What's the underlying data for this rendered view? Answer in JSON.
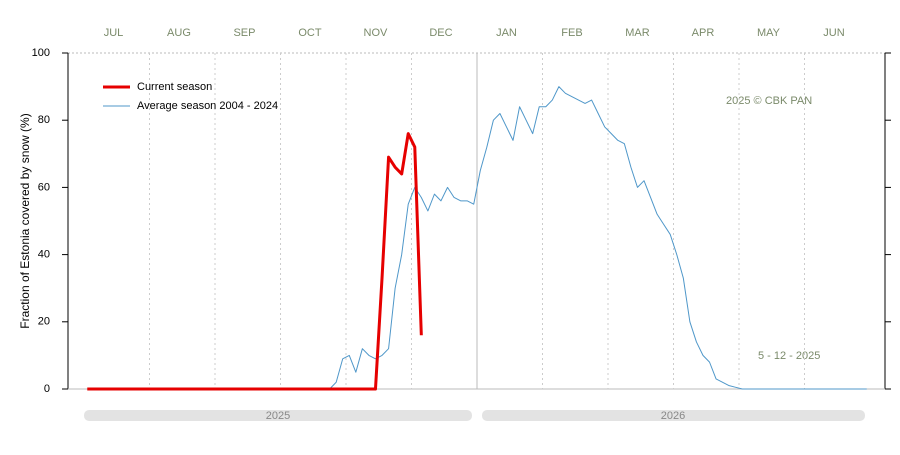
{
  "chart_data": {
    "type": "line",
    "y_label": "Fraction of  Estonia  covered by  snow (%)",
    "annotations": [
      "2025  © CBK PAN",
      "5 - 12 - 2025"
    ],
    "year_labels": [
      "2025",
      "2026"
    ],
    "categories": [
      null,
      null,
      null,
      null,
      "JUL",
      null,
      null,
      null,
      null,
      null,
      null,
      null,
      null,
      null,
      "AUG",
      null,
      null,
      null,
      null,
      null,
      null,
      null,
      null,
      null,
      "SEP",
      null,
      null,
      null,
      null,
      null,
      null,
      null,
      null,
      null,
      "OCT",
      null,
      null,
      null,
      null,
      null,
      null,
      null,
      null,
      null,
      "NOV",
      null,
      null,
      null,
      null,
      null,
      null,
      null,
      null,
      null,
      "DEC",
      null,
      null,
      null,
      null,
      null,
      null,
      null,
      null,
      null,
      "JAN",
      null,
      null,
      null,
      null,
      null,
      null,
      null,
      null,
      null,
      "FEB",
      null,
      null,
      null,
      null,
      null,
      null,
      null,
      null,
      null,
      "MAR",
      null,
      null,
      null,
      null,
      null,
      null,
      null,
      null,
      null,
      "APR",
      null,
      null,
      null,
      null,
      null,
      null,
      null,
      null,
      null,
      "MAY",
      null,
      null,
      null,
      null,
      null,
      null,
      null,
      null,
      null,
      "JUN",
      null,
      null,
      null,
      null,
      null
    ],
    "series": [
      {
        "name": "Current season",
        "color": "#e60000",
        "width": 3,
        "values": [
          0,
          0,
          0,
          0,
          0,
          0,
          0,
          0,
          0,
          0,
          0,
          0,
          0,
          0,
          0,
          0,
          0,
          0,
          0,
          0,
          0,
          0,
          0,
          0,
          0,
          0,
          0,
          0,
          0,
          0,
          0,
          0,
          0,
          0,
          0,
          0,
          0,
          0,
          0,
          0,
          0,
          0,
          0,
          0,
          0,
          33,
          69,
          66,
          64,
          76,
          72,
          16,
          null,
          null,
          null,
          null,
          null,
          null,
          null,
          null,
          null,
          null,
          null,
          null,
          null,
          null,
          null,
          null,
          null,
          null,
          null,
          null,
          null,
          null,
          null,
          null,
          null,
          null,
          null,
          null,
          null,
          null,
          null,
          null,
          null,
          null,
          null,
          null,
          null,
          null,
          null,
          null,
          null,
          null,
          null,
          null,
          null,
          null,
          null,
          null,
          null,
          null,
          null,
          null,
          null,
          null,
          null,
          null,
          null,
          null,
          null,
          null,
          null,
          null,
          null,
          null,
          null,
          null,
          null,
          null
        ]
      },
      {
        "name": "Average season 2004 - 2024",
        "color": "#4f97c9",
        "width": 1,
        "values": [
          0,
          0,
          0,
          0,
          0,
          0,
          0,
          0,
          0,
          0,
          0,
          0,
          0,
          0,
          0,
          0,
          0,
          0,
          0,
          0,
          0,
          0,
          0,
          0,
          0,
          0,
          0,
          0,
          0,
          0,
          0,
          0,
          0,
          0,
          0,
          0,
          0,
          0,
          2,
          9,
          10,
          5,
          12,
          10,
          9,
          10,
          12,
          30,
          40,
          55,
          60,
          57,
          53,
          58,
          56,
          60,
          57,
          56,
          56,
          55,
          65,
          72,
          80,
          82,
          78,
          74,
          84,
          80,
          76,
          84,
          84,
          86,
          90,
          88,
          87,
          86,
          85,
          86,
          82,
          78,
          76,
          74,
          73,
          66,
          60,
          62,
          57,
          52,
          49,
          46,
          40,
          33,
          20,
          14,
          10,
          8,
          3,
          2,
          1,
          0.5,
          0,
          0,
          0,
          0,
          0,
          0,
          0,
          0,
          0,
          0,
          0,
          0,
          0,
          0,
          0,
          0,
          0,
          0,
          0,
          0
        ]
      }
    ],
    "ylim": [
      0,
      100
    ],
    "yticks": [
      0,
      20,
      40,
      60,
      80,
      100
    ],
    "legend": "upper left"
  }
}
